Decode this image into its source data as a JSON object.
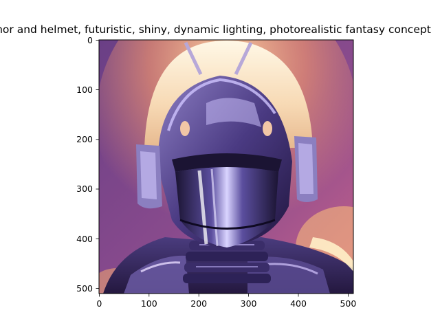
{
  "figure": {
    "title": "armor and helmet, futuristic, shiny, dynamic lighting, photorealistic fantasy concept"
  },
  "image": {
    "description": "Painted robot-like figure in a rounded purple and silver helmet with a dark visor and bright metallic highlights, wearing segmented armor, against a warm purple-to-orange glow.",
    "colors": {
      "background_top": "#6a3f86",
      "background_bottom": "#c8628a",
      "glow": "#ffb877",
      "helmet_dark": "#2a1f4e",
      "helmet_mid": "#6b5aa3",
      "highlight": "#fff1d6"
    }
  },
  "axes": {
    "x_ticks": [
      "0",
      "100",
      "200",
      "300",
      "400",
      "500"
    ],
    "y_ticks": [
      "0",
      "100",
      "200",
      "300",
      "400",
      "500"
    ],
    "x_range": [
      0,
      511
    ],
    "y_range": [
      511,
      0
    ]
  }
}
